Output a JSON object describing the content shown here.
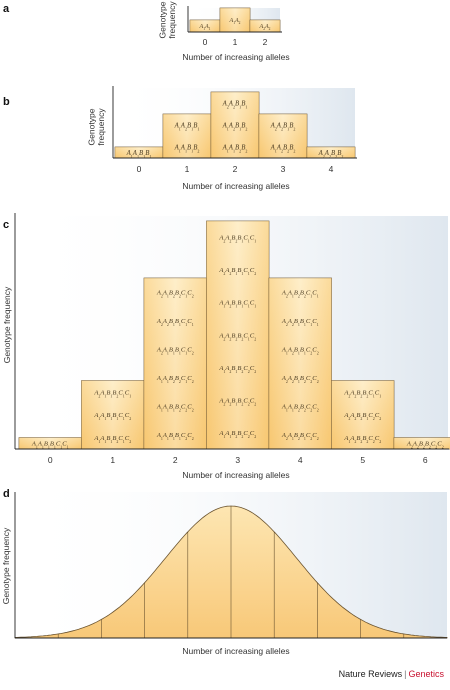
{
  "panels": [
    {
      "id": "a",
      "letter": "a",
      "ylabel_lines": [
        "Genotype",
        "frequency"
      ],
      "xlabel": "Number of increasing alleles",
      "bars": [
        {
          "x": "0",
          "freq": 1,
          "genotypes": [
            "A1A1"
          ]
        },
        {
          "x": "1",
          "freq": 2,
          "genotypes": [
            "A1A2"
          ]
        },
        {
          "x": "2",
          "freq": 1,
          "genotypes": [
            "A2A2"
          ]
        }
      ]
    },
    {
      "id": "b",
      "letter": "b",
      "ylabel_lines": [
        "Genotype",
        "frequency"
      ],
      "xlabel": "Number of increasing alleles",
      "bars": [
        {
          "x": "0",
          "freq": 1,
          "genotypes": [
            "A1A1B1B1"
          ]
        },
        {
          "x": "1",
          "freq": 4,
          "genotypes": [
            "A1A2B1B1",
            "A1A1B1B2"
          ]
        },
        {
          "x": "2",
          "freq": 6,
          "genotypes": [
            "A2A2B1B1",
            "A1A2B1B2",
            "A1A1B2B2"
          ]
        },
        {
          "x": "3",
          "freq": 4,
          "genotypes": [
            "A2A2B1B2",
            "A1A2B2B2"
          ]
        },
        {
          "x": "4",
          "freq": 1,
          "genotypes": [
            "A2A2B2B2"
          ]
        }
      ]
    },
    {
      "id": "c",
      "letter": "c",
      "ylabel_lines": [
        "Genotype frequency"
      ],
      "xlabel": "Number of increasing alleles",
      "bars": [
        {
          "x": "0",
          "freq": 1,
          "genotypes": [
            "A1A1B1B1C1C1"
          ]
        },
        {
          "x": "1",
          "freq": 6,
          "genotypes": [
            "A2A1B1B2C1C1",
            "A1A1B1B1C1C2",
            "A1A1B1B2C1C2"
          ]
        },
        {
          "x": "2",
          "freq": 15,
          "genotypes": [
            "A2A1B2B2C1C2",
            "A2A2B1B1C1C1",
            "A2A1B1B1C1C2",
            "A1A1B2B2C1C2",
            "A1A1B1B2C2C2",
            "A1A1B1B1C2C2"
          ]
        },
        {
          "x": "3",
          "freq": 20,
          "genotypes": [
            "A2A2B2B1C1C1",
            "A2A2B1B1C1C2",
            "A1A2B1B1C1C1",
            "A2A2B2B2C1C2",
            "A1A2B1B2C2C2",
            "A2A2B1B2C2C2",
            "A1A1B2B2C2C2"
          ]
        },
        {
          "x": "4",
          "freq": 15,
          "genotypes": [
            "A2A1B2B2C1C1",
            "A2A2B1B1C1C1",
            "A1A2B1B1C2C2",
            "A2A2B1B2C2C2",
            "A1A1B2B2C2C2",
            "A2A1B2B1C2C2"
          ]
        },
        {
          "x": "5",
          "freq": 6,
          "genotypes": [
            "A2A2B2B2C1C1",
            "A2A2B2B1C2C2",
            "A1A2B2B2C2C2"
          ]
        },
        {
          "x": "6",
          "freq": 1,
          "genotypes": [
            "A2A2B2B2C2C2"
          ]
        }
      ]
    },
    {
      "id": "d",
      "letter": "d",
      "ylabel_lines": [
        "Genotype frequency"
      ],
      "xlabel": "Number of increasing alleles",
      "curve": {
        "type": "normal",
        "sections": 10
      }
    }
  ],
  "credit": {
    "journal": "Nature Reviews",
    "separator": "|",
    "section": "Genetics"
  },
  "colors": {
    "bar_fill_top": "#fbdfa5",
    "bar_fill_bottom": "#f5b94f",
    "bar_stroke": "#6b5430",
    "bg_top": "#dfe7ef",
    "text": "#333333",
    "accent": "#c8102e"
  }
}
